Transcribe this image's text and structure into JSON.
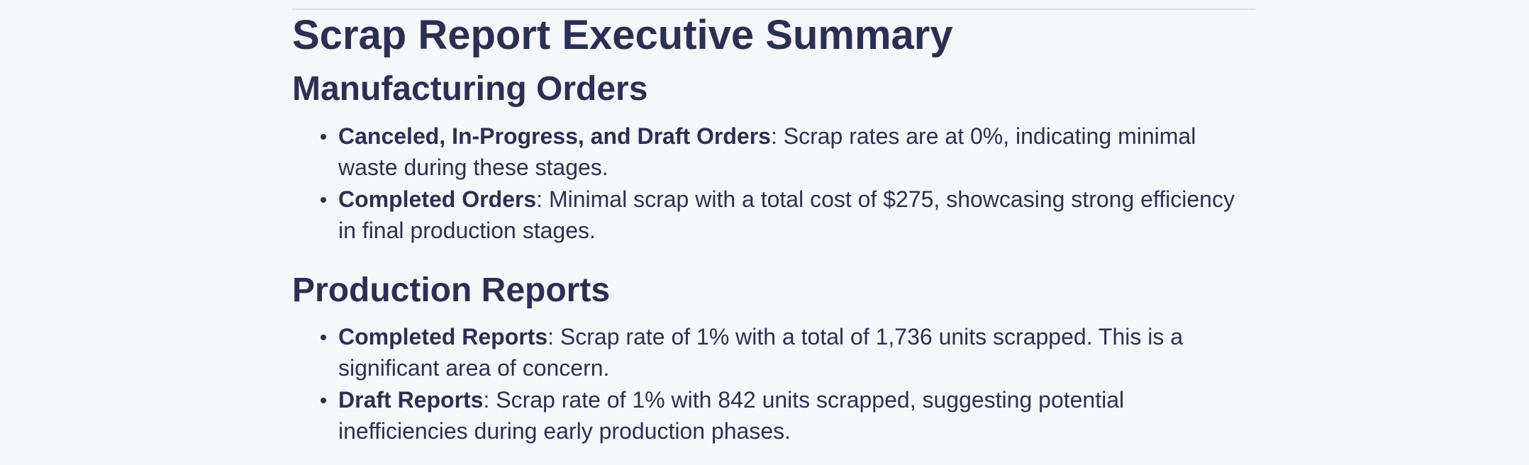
{
  "document": {
    "title": "Scrap Report Executive Summary",
    "sections": [
      {
        "heading": "Manufacturing Orders",
        "items": [
          {
            "lead": "Canceled, In-Progress, and Draft Orders",
            "text": ": Scrap rates are at 0%, indicating minimal waste during these stages."
          },
          {
            "lead": "Completed Orders",
            "text": ": Minimal scrap with a total cost of $275, showcasing strong efficiency in final production stages."
          }
        ]
      },
      {
        "heading": "Production Reports",
        "items": [
          {
            "lead": "Completed Reports",
            "text": ": Scrap rate of 1% with a total of 1,736 units scrapped. This is a significant area of concern."
          },
          {
            "lead": "Draft Reports",
            "text": ": Scrap rate of 1% with 842 units scrapped, suggesting potential inefficiencies during early production phases."
          }
        ]
      }
    ]
  }
}
